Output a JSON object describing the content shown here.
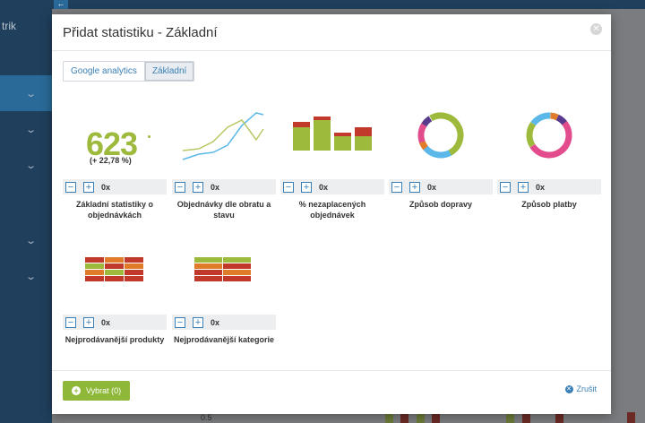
{
  "background": {
    "logo_text": "trik",
    "axis_label": "0.5"
  },
  "modal": {
    "title": "Přidat statistiku - Základní",
    "tabs": [
      {
        "label": "Google analytics",
        "active": false
      },
      {
        "label": "Základní",
        "active": true
      }
    ],
    "cards": [
      {
        "label": "Základní statistiky o objednávkách",
        "count": "0x",
        "thumb": "number",
        "big_value": "623",
        "big_change": "(+ 22,78 %)"
      },
      {
        "label": "Objednávky dle obratu a stavu",
        "count": "0x",
        "thumb": "line"
      },
      {
        "label": "% nezaplacených objednávek",
        "count": "0x",
        "thumb": "bars"
      },
      {
        "label": "Způsob dopravy",
        "count": "0x",
        "thumb": "donut-green"
      },
      {
        "label": "Způsob platby",
        "count": "0x",
        "thumb": "donut-pink"
      },
      {
        "label": "Nejprodávanější produkty",
        "count": "0x",
        "thumb": "heat-products"
      },
      {
        "label": "Nejprodávanější kategorie",
        "count": "0x",
        "thumb": "heat-categories"
      }
    ],
    "footer": {
      "select_label": "Vybrat (0)",
      "cancel_label": "Zrušit"
    }
  },
  "colors": {
    "accent": "#3a7fb5",
    "green": "#9dba3c",
    "red": "#c0392b",
    "orange": "#e07b2a",
    "pink": "#e24c8c",
    "blue": "#5bb8e8",
    "purple": "#5a3a8c"
  },
  "icons": {
    "minus": "minus-icon",
    "plus": "plus-icon",
    "close": "close-icon",
    "cancel": "cancel-x-icon",
    "add": "plus-circle-icon"
  }
}
